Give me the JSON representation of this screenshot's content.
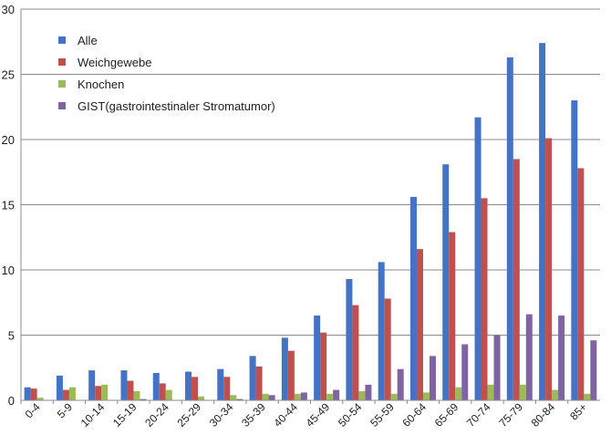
{
  "chart_data": {
    "type": "bar",
    "categories": [
      "0-4",
      "5-9",
      "10-14",
      "15-19",
      "20-24",
      "25-29",
      "30-34",
      "35-39",
      "40-44",
      "45-49",
      "50-54",
      "55-59",
      "60-64",
      "65-69",
      "70-74",
      "75-79",
      "80-84",
      "85+"
    ],
    "ylim": [
      0,
      30
    ],
    "yticks": [
      0,
      5,
      10,
      15,
      20,
      25,
      30
    ],
    "grid": true,
    "legend_position": "top-left",
    "series": [
      {
        "name": "Alle",
        "color": "#4472C4",
        "values": [
          1.0,
          1.9,
          2.3,
          2.3,
          2.1,
          2.2,
          2.4,
          3.4,
          4.8,
          6.5,
          9.3,
          10.6,
          15.6,
          18.1,
          21.7,
          26.3,
          27.4,
          23.0
        ]
      },
      {
        "name": "Weichgewebe",
        "color": "#C0504D",
        "values": [
          0.9,
          0.8,
          1.1,
          1.5,
          1.3,
          1.8,
          1.8,
          2.6,
          3.8,
          5.2,
          7.3,
          7.8,
          11.6,
          12.9,
          15.5,
          18.5,
          20.1,
          17.8
        ]
      },
      {
        "name": "Knochen",
        "color": "#9BBB59",
        "values": [
          0.2,
          1.0,
          1.2,
          0.7,
          0.8,
          0.3,
          0.4,
          0.5,
          0.5,
          0.5,
          0.7,
          0.5,
          0.6,
          1.0,
          1.2,
          1.2,
          0.8,
          0.5
        ]
      },
      {
        "name": "GIST(gastrointestinaler Stromatumor)",
        "color": "#8064A2",
        "values": [
          0.0,
          0.0,
          0.0,
          0.1,
          0.0,
          0.0,
          0.1,
          0.4,
          0.6,
          0.8,
          1.2,
          2.4,
          3.4,
          4.3,
          5.0,
          6.6,
          6.5,
          4.6
        ]
      }
    ]
  }
}
